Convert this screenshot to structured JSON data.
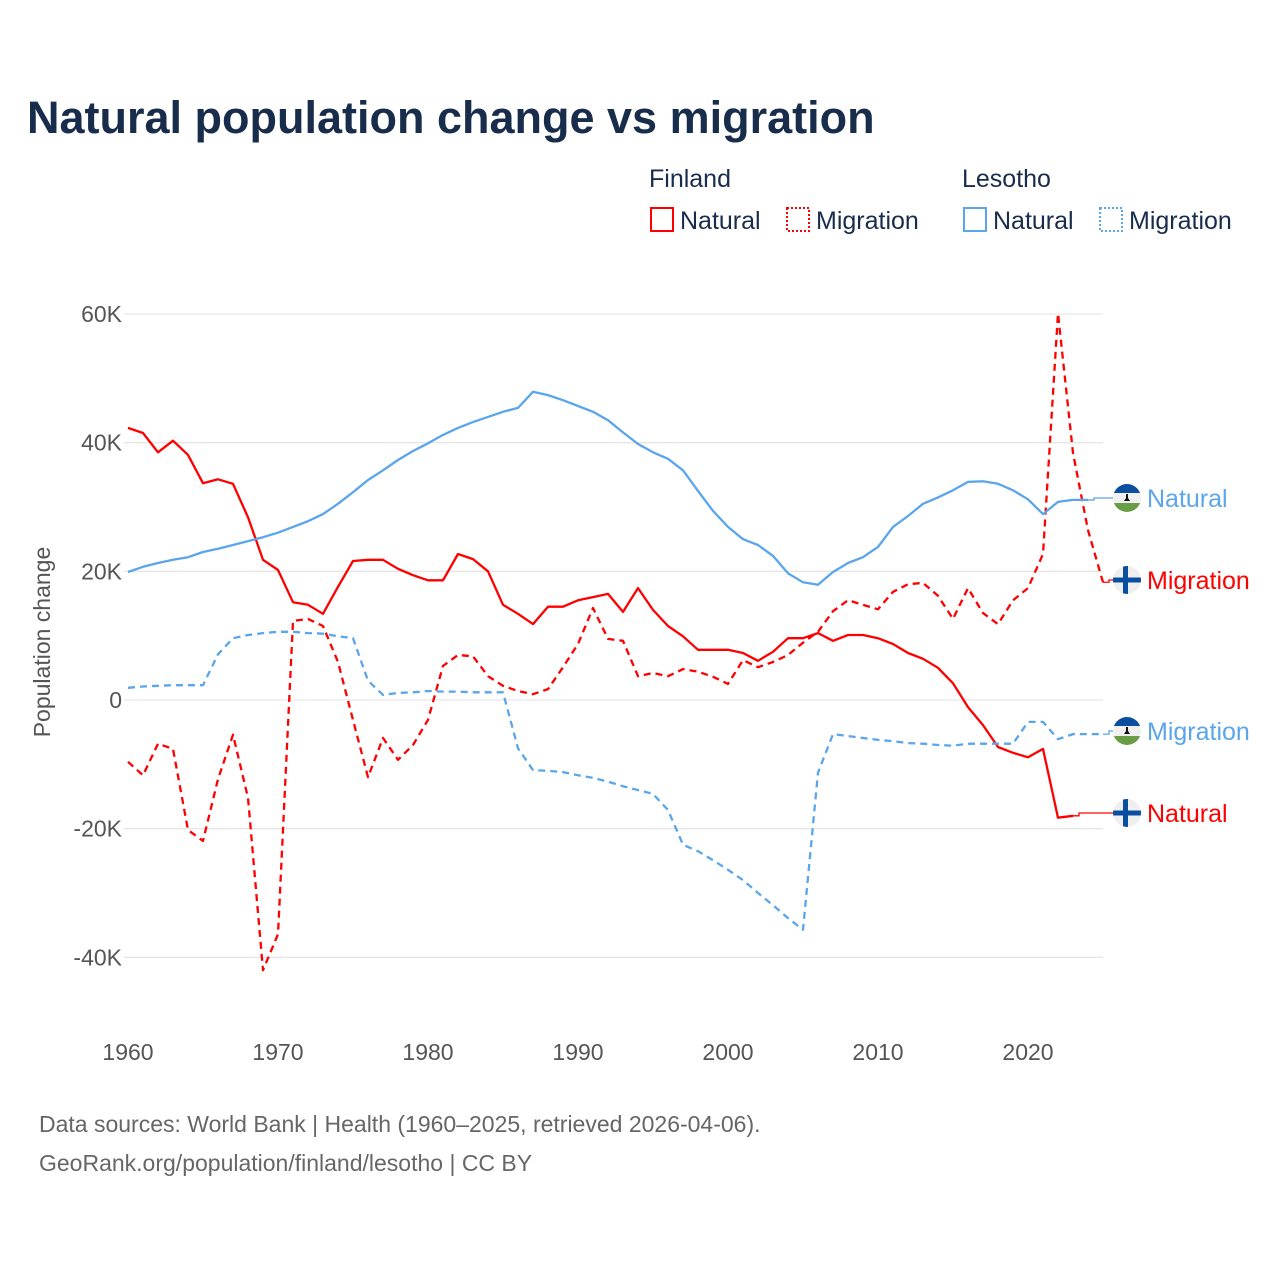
{
  "title": "Natural population change vs migration",
  "legend": {
    "groups": [
      {
        "name": "Finland",
        "items": [
          {
            "label": "Natural",
            "style": "solid"
          },
          {
            "label": "Migration",
            "style": "dotted"
          }
        ],
        "color": "#ff0000"
      },
      {
        "name": "Lesotho",
        "items": [
          {
            "label": "Natural",
            "style": "solid"
          },
          {
            "label": "Migration",
            "style": "dotted"
          }
        ],
        "color": "#5aa5ec"
      }
    ]
  },
  "footer": {
    "line1": "Data sources: World Bank | Health (1960–2025, retrieved 2026-04-06).",
    "line2": "GeoRank.org/population/finland/lesotho | CC BY"
  },
  "chart_data": {
    "type": "line",
    "title": "Natural population change vs migration",
    "xlabel": "",
    "ylabel": "Population change",
    "xlim": [
      1960,
      2025
    ],
    "ylim": [
      -40000,
      60000
    ],
    "x_ticks": [
      1960,
      1970,
      1980,
      1990,
      2000,
      2010,
      2020
    ],
    "x_tick_labels": [
      "1960",
      "1970",
      "1980",
      "1990",
      "2000",
      "2010",
      "2020"
    ],
    "y_ticks": [
      60000,
      40000,
      20000,
      0,
      -20000,
      -40000
    ],
    "y_tick_labels": [
      "60K",
      "40K",
      "20K",
      "0",
      "-20K",
      "-40K"
    ],
    "grid": true,
    "legend_position": "top-right",
    "series": [
      {
        "name": "Finland Natural",
        "end_label": "Natural",
        "country": "Finland",
        "color": "#ff0000",
        "dashed": false,
        "start_year": 1960,
        "values": [
          42300,
          41500,
          38500,
          40300,
          38100,
          33700,
          34300,
          33600,
          28400,
          21800,
          20200,
          15200,
          14800,
          13400,
          17600,
          21600,
          21800,
          21800,
          20400,
          19400,
          18600,
          18600,
          22700,
          21900,
          20000,
          14800,
          13400,
          11800,
          14500,
          14500,
          15500,
          16000,
          16500,
          13700,
          17400,
          14000,
          11500,
          9900,
          7800,
          7800,
          7800,
          7300,
          6100,
          7500,
          9600,
          9600,
          10400,
          9200,
          10100,
          10100,
          9600,
          8700,
          7300,
          6400,
          5000,
          2600,
          -1100,
          -3900,
          -7300,
          -8200,
          -8900,
          -7600,
          -18300,
          -18000
        ]
      },
      {
        "name": "Finland Migration",
        "end_label": "Migration",
        "country": "Finland",
        "color": "#ff0000",
        "dashed": true,
        "start_year": 1960,
        "values": [
          -9600,
          -11700,
          -6800,
          -7600,
          -20200,
          -21900,
          -12300,
          -5400,
          -15200,
          -42000,
          -36400,
          12300,
          12600,
          11500,
          5900,
          -3100,
          -12000,
          -5900,
          -9300,
          -7000,
          -3100,
          5300,
          7000,
          6800,
          3700,
          2200,
          1400,
          900,
          1700,
          5100,
          8700,
          14300,
          9500,
          9200,
          3700,
          4200,
          3700,
          4800,
          4400,
          3600,
          2500,
          6200,
          5100,
          5900,
          7000,
          8900,
          10600,
          13800,
          15500,
          14800,
          14100,
          16800,
          18000,
          18200,
          16200,
          12600,
          17400,
          13500,
          11800,
          15500,
          17400,
          22700,
          60100,
          38400,
          26400,
          18300
        ]
      },
      {
        "name": "Lesotho Natural",
        "end_label": "Natural",
        "country": "Lesotho",
        "color": "#5aa5ec",
        "dashed": false,
        "start_year": 1960,
        "values": [
          19900,
          20700,
          21300,
          21800,
          22200,
          23000,
          23500,
          24100,
          24700,
          25300,
          26000,
          26900,
          27800,
          28900,
          30500,
          32300,
          34200,
          35700,
          37300,
          38700,
          39900,
          41200,
          42300,
          43200,
          44000,
          44800,
          45400,
          47900,
          47400,
          46600,
          45700,
          44800,
          43500,
          41600,
          39800,
          38500,
          37500,
          35700,
          32500,
          29400,
          26900,
          25000,
          24100,
          22400,
          19700,
          18300,
          17900,
          19900,
          21300,
          22200,
          23800,
          26900,
          28600,
          30500,
          31500,
          32600,
          33900,
          34000,
          33600,
          32600,
          31200,
          28900,
          30800,
          31100,
          31100
        ]
      },
      {
        "name": "Lesotho Migration",
        "end_label": "Migration",
        "country": "Lesotho",
        "color": "#5aa5ec",
        "dashed": true,
        "start_year": 1960,
        "values": [
          1900,
          2100,
          2200,
          2300,
          2300,
          2300,
          7100,
          9600,
          10100,
          10400,
          10600,
          10600,
          10400,
          10300,
          9900,
          9600,
          3000,
          800,
          1100,
          1200,
          1400,
          1300,
          1300,
          1200,
          1200,
          1200,
          -7500,
          -10900,
          -11000,
          -11200,
          -11700,
          -12100,
          -12700,
          -13400,
          -14000,
          -14600,
          -17100,
          -22500,
          -23500,
          -24900,
          -26400,
          -28000,
          -30000,
          -31900,
          -33900,
          -35700,
          -11300,
          -5300,
          -5600,
          -5900,
          -6200,
          -6400,
          -6700,
          -6800,
          -7000,
          -7100,
          -6800,
          -6800,
          -6800,
          -6800,
          -3400,
          -3400,
          -6100,
          -5300,
          -5300,
          -5300
        ]
      }
    ]
  }
}
